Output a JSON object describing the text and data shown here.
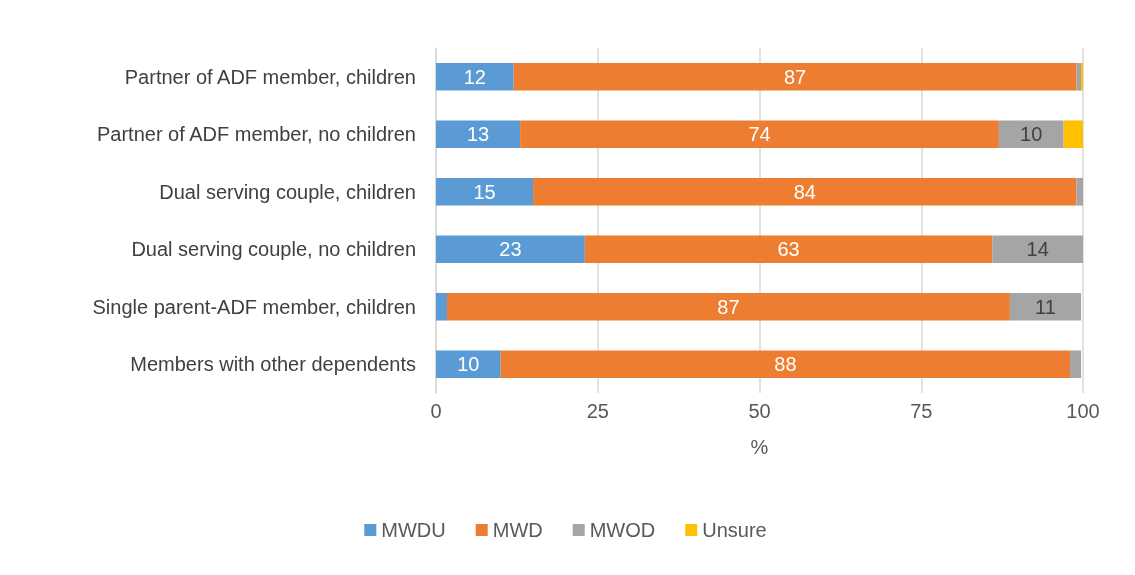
{
  "chart_data": {
    "type": "bar",
    "orientation": "horizontal",
    "stacked": true,
    "xlabel": "%",
    "categories": [
      "Partner of ADF member, children",
      "Partner of ADF member, no children",
      "Dual serving couple, children",
      "Dual serving couple, no children",
      "Single parent-ADF member, children",
      "Members with other dependents"
    ],
    "series": [
      {
        "name": "MWDU",
        "color": "#5b9bd5",
        "values": [
          12,
          13,
          15,
          23,
          1.7,
          10
        ],
        "value_labels": [
          "12",
          "13",
          "15",
          "23",
          null,
          "10"
        ]
      },
      {
        "name": "MWD",
        "color": "#ed7d31",
        "values": [
          87,
          74,
          84,
          63,
          87,
          88
        ],
        "value_labels": [
          "87",
          "74",
          "84",
          "63",
          "87",
          "88"
        ]
      },
      {
        "name": "MWOD",
        "color": "#a5a5a5",
        "values": [
          0.7,
          10,
          1,
          14,
          11,
          1.7
        ],
        "value_labels": [
          null,
          "10",
          null,
          "14",
          "11",
          null
        ]
      },
      {
        "name": "Unsure",
        "color": "#ffc000",
        "values": [
          0.3,
          3,
          0,
          0,
          0,
          0
        ],
        "value_labels": [
          null,
          null,
          null,
          null,
          null,
          null
        ]
      }
    ],
    "xlim": [
      0,
      100
    ],
    "xticks": [
      0,
      25,
      50,
      75,
      100
    ],
    "grid": "x",
    "legend": "bottom"
  }
}
